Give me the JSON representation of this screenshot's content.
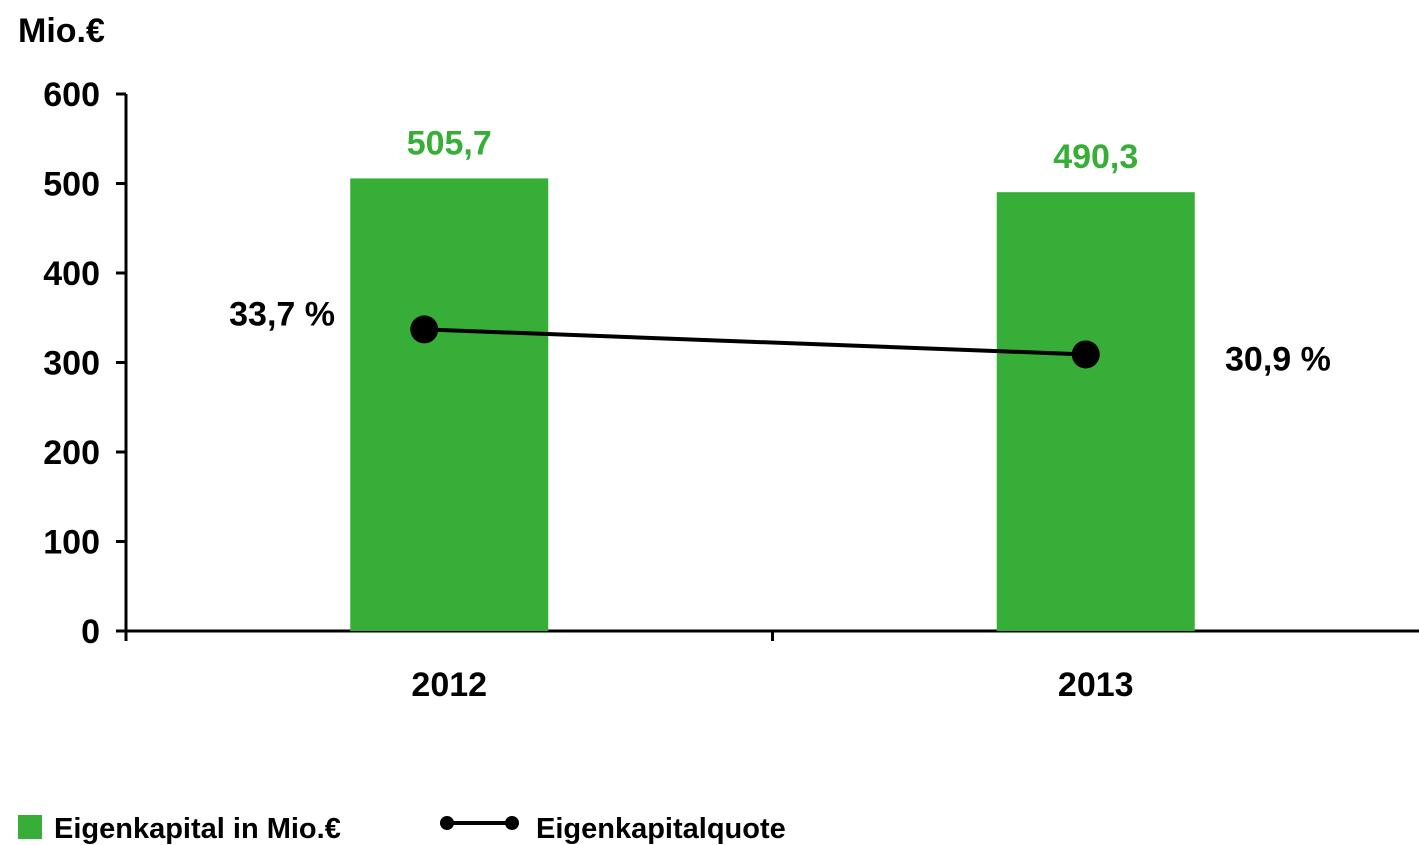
{
  "chart_data": {
    "type": "bar",
    "unit_label": "Mio.€",
    "categories": [
      "2012",
      "2013"
    ],
    "ylim": [
      0,
      600
    ],
    "yticks": [
      0,
      100,
      200,
      300,
      400,
      500,
      600
    ],
    "series": [
      {
        "name": "Eigenkapital in Mio.€",
        "type": "bar",
        "values": [
          505.7,
          490.3
        ],
        "data_labels": [
          "505,7",
          "490,3"
        ],
        "color": "#36AE37"
      },
      {
        "name": "Eigenkapitalquote",
        "type": "line",
        "values": [
          33.7,
          30.9
        ],
        "data_labels": [
          "33,7 %",
          "30,9 %"
        ],
        "color": "#000000"
      }
    ],
    "grid": false,
    "legend_position": "bottom-left"
  }
}
